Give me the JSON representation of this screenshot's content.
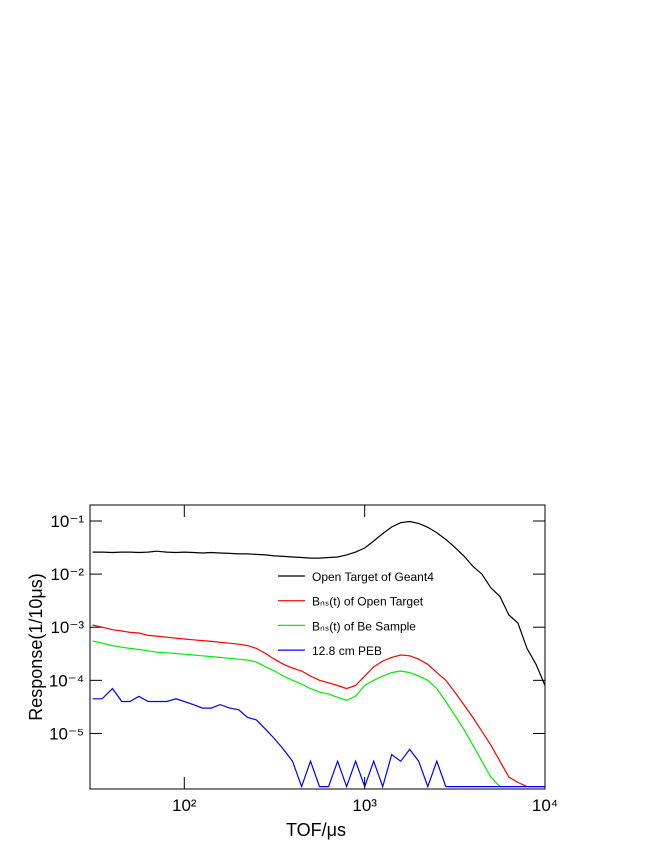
{
  "chart_data": {
    "type": "line",
    "x_label": "TOF/μs",
    "y_label": "Response(1/10μs)",
    "xscale": "log",
    "yscale": "log",
    "xlim": [
      30,
      10000
    ],
    "ylim": [
      9e-07,
      0.2
    ],
    "xticks": [
      {
        "value": 100,
        "label": "10²"
      },
      {
        "value": 1000,
        "label": "10³"
      },
      {
        "value": 10000,
        "label": "10⁴"
      }
    ],
    "yticks": [
      {
        "value": 1e-05,
        "label": "10⁻⁵"
      },
      {
        "value": 0.0001,
        "label": "10⁻⁴"
      },
      {
        "value": 0.001,
        "label": "10⁻³"
      },
      {
        "value": 0.01,
        "label": "10⁻²"
      },
      {
        "value": 0.1,
        "label": "10⁻¹"
      }
    ],
    "x": [
      31,
      35,
      40,
      45,
      50,
      56,
      63,
      70,
      80,
      90,
      100,
      112,
      126,
      141,
      158,
      178,
      200,
      224,
      251,
      282,
      316,
      355,
      398,
      447,
      501,
      562,
      631,
      708,
      794,
      891,
      1000,
      1122,
      1259,
      1413,
      1585,
      1778,
      1995,
      2239,
      2512,
      2818,
      3162,
      3548,
      3981,
      4467,
      5012,
      5623,
      6310,
      7079,
      7943,
      8913,
      10000
    ],
    "series": [
      {
        "name": "Open Target of Geant4",
        "color": "#000000",
        "values": [
          0.026,
          0.026,
          0.0255,
          0.026,
          0.026,
          0.0255,
          0.026,
          0.027,
          0.026,
          0.0255,
          0.026,
          0.0255,
          0.025,
          0.0255,
          0.025,
          0.0245,
          0.024,
          0.024,
          0.0235,
          0.023,
          0.022,
          0.0215,
          0.021,
          0.0205,
          0.02,
          0.02,
          0.0205,
          0.021,
          0.023,
          0.026,
          0.031,
          0.042,
          0.058,
          0.077,
          0.093,
          0.098,
          0.09,
          0.076,
          0.06,
          0.045,
          0.032,
          0.022,
          0.014,
          0.01,
          0.0055,
          0.0038,
          0.0017,
          0.0012,
          0.0004,
          0.0002,
          8e-05
        ]
      },
      {
        "name": "Bₙₛ(t) of Open Target",
        "color": "#ff0000",
        "values": [
          0.0011,
          0.001,
          0.0009,
          0.00085,
          0.0008,
          0.00078,
          0.0007,
          0.00068,
          0.00065,
          0.00062,
          0.0006,
          0.00058,
          0.00056,
          0.00054,
          0.00052,
          0.0005,
          0.00048,
          0.00045,
          0.0004,
          0.00032,
          0.00025,
          0.0002,
          0.00017,
          0.00015,
          0.00012,
          0.0001,
          9e-05,
          8e-05,
          7e-05,
          8e-05,
          0.00012,
          0.00018,
          0.00023,
          0.00027,
          0.0003,
          0.00029,
          0.00025,
          0.0002,
          0.00014,
          0.0001,
          6e-05,
          3.5e-05,
          2e-05,
          1.1e-05,
          6e-06,
          3e-06,
          1.5e-06,
          1.2e-06,
          1e-06,
          1e-06,
          1e-06
        ]
      },
      {
        "name": "Bₙₛ(t) of Be Sample",
        "color": "#00ee00",
        "values": [
          0.00055,
          0.0005,
          0.00045,
          0.00042,
          0.0004,
          0.00038,
          0.00036,
          0.00034,
          0.00033,
          0.00032,
          0.00031,
          0.0003,
          0.00029,
          0.00028,
          0.00027,
          0.00026,
          0.00025,
          0.00024,
          0.00022,
          0.00018,
          0.00015,
          0.00012,
          0.0001,
          8.5e-05,
          7e-05,
          6e-05,
          5.5e-05,
          4.8e-05,
          4.2e-05,
          5e-05,
          8e-05,
          0.0001,
          0.00012,
          0.00014,
          0.00015,
          0.00014,
          0.00012,
          0.0001,
          7e-05,
          4e-05,
          2.2e-05,
          1.2e-05,
          6e-06,
          3e-06,
          1.5e-06,
          1e-06,
          1e-06,
          1e-06,
          1e-06,
          1e-06,
          1e-06
        ]
      },
      {
        "name": "12.8 cm PEB",
        "color": "#0000ff",
        "values": [
          4.5e-05,
          4.5e-05,
          7e-05,
          4e-05,
          4e-05,
          5e-05,
          4e-05,
          4e-05,
          4e-05,
          4.5e-05,
          4e-05,
          3.5e-05,
          3e-05,
          3e-05,
          3.5e-05,
          3e-05,
          2.8e-05,
          2e-05,
          1.8e-05,
          1.2e-05,
          8e-06,
          5e-06,
          3e-06,
          1e-06,
          3e-06,
          1e-06,
          1e-06,
          3e-06,
          1e-06,
          3e-06,
          1e-06,
          3e-06,
          1e-06,
          4e-06,
          3e-06,
          5e-06,
          3e-06,
          1e-06,
          3e-06,
          1e-06,
          1e-06,
          1e-06,
          1e-06,
          1e-06,
          1e-06,
          1e-06,
          1e-06,
          1e-06,
          1e-06,
          1e-06,
          1e-06
        ]
      }
    ]
  }
}
